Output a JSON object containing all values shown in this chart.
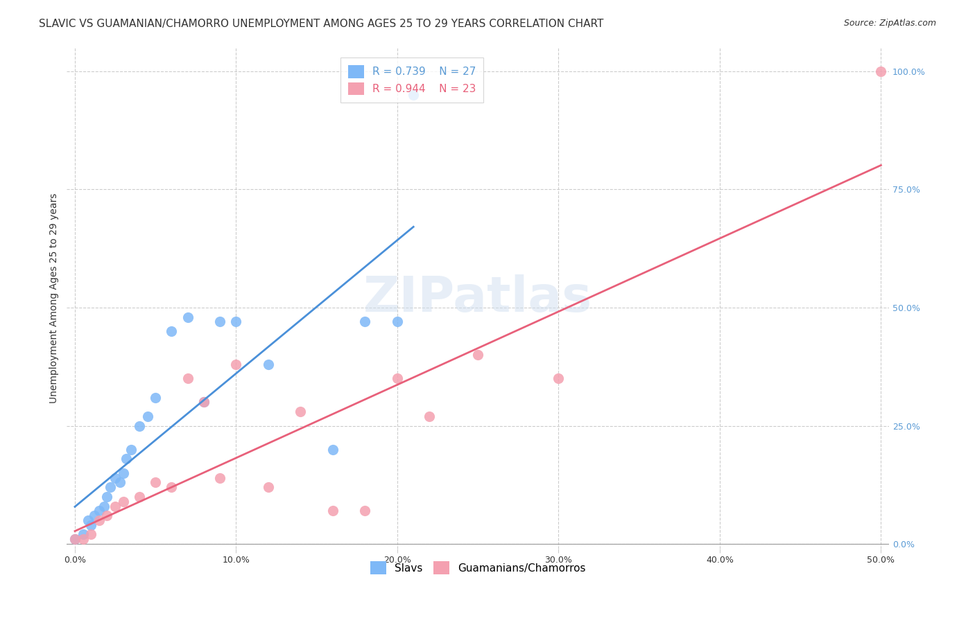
{
  "title": "SLAVIC VS GUAMANIAN/CHAMORRO UNEMPLOYMENT AMONG AGES 25 TO 29 YEARS CORRELATION CHART",
  "source": "Source: ZipAtlas.com",
  "xlabel": "",
  "ylabel": "Unemployment Among Ages 25 to 29 years",
  "xlim": [
    -0.005,
    0.505
  ],
  "ylim": [
    -0.01,
    1.05
  ],
  "xticks": [
    0.0,
    0.1,
    0.2,
    0.3,
    0.4,
    0.5
  ],
  "xtick_labels": [
    "0.0%",
    "10.0%",
    "20.0%",
    "30.0%",
    "40.0%",
    "50.0%"
  ],
  "yticks": [
    0.0,
    0.25,
    0.5,
    0.75,
    1.0
  ],
  "ytick_labels": [
    "0.0%",
    "25.0%",
    "50.0%",
    "75.0%",
    "100.0%"
  ],
  "background_color": "#ffffff",
  "watermark": "ZIPatlas",
  "legend_R_blue": "0.739",
  "legend_N_blue": "27",
  "legend_R_pink": "0.944",
  "legend_N_pink": "23",
  "blue_label": "Slavs",
  "pink_label": "Guamanians/Chamorros",
  "blue_color": "#7eb8f7",
  "pink_color": "#f4a0b0",
  "blue_line_color": "#4a90d9",
  "pink_line_color": "#e8607a",
  "slavs_x": [
    0.0,
    0.005,
    0.008,
    0.01,
    0.012,
    0.015,
    0.018,
    0.02,
    0.022,
    0.025,
    0.028,
    0.03,
    0.032,
    0.035,
    0.04,
    0.045,
    0.05,
    0.06,
    0.07,
    0.08,
    0.09,
    0.1,
    0.12,
    0.16,
    0.18,
    0.2,
    0.21
  ],
  "slavs_y": [
    0.01,
    0.02,
    0.05,
    0.04,
    0.06,
    0.07,
    0.08,
    0.1,
    0.12,
    0.14,
    0.13,
    0.15,
    0.18,
    0.2,
    0.25,
    0.27,
    0.31,
    0.45,
    0.48,
    0.3,
    0.47,
    0.47,
    0.38,
    0.2,
    0.47,
    0.47,
    0.95
  ],
  "guam_x": [
    0.0,
    0.005,
    0.01,
    0.015,
    0.02,
    0.025,
    0.03,
    0.04,
    0.05,
    0.06,
    0.07,
    0.08,
    0.09,
    0.1,
    0.12,
    0.14,
    0.16,
    0.18,
    0.2,
    0.22,
    0.25,
    0.3,
    0.5
  ],
  "guam_y": [
    0.01,
    0.01,
    0.02,
    0.05,
    0.06,
    0.08,
    0.09,
    0.1,
    0.13,
    0.12,
    0.35,
    0.3,
    0.14,
    0.38,
    0.12,
    0.28,
    0.07,
    0.07,
    0.35,
    0.27,
    0.4,
    0.35,
    1.0
  ],
  "title_fontsize": 11,
  "axis_fontsize": 10,
  "tick_fontsize": 9,
  "legend_fontsize": 11,
  "source_fontsize": 9
}
